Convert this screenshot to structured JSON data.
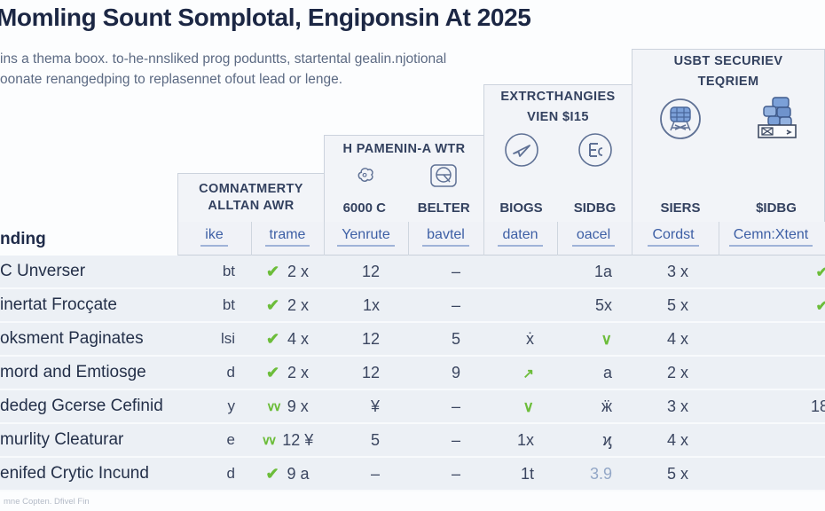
{
  "page": {
    "title": "Momling Sount Somplotal, Engiponsin At 2025",
    "subtitle1": "ins a thema boox. to-he-nnsliked prog poduntts, startental gealin.njotional",
    "subtitle2": "oonate renangedping to replasennet ofout lead or lenge.",
    "footer": "mne Copten. Dfivel Fin"
  },
  "colors": {
    "title_navy": "#1c2744",
    "link_blue": "#3d5fa5",
    "check_green": "#6cbd3a",
    "panel_bg": "#f2f4f8",
    "row_bg": "#ecf0f5"
  },
  "table": {
    "row_header": "nding",
    "groups": [
      {
        "title1": "COMNATMERTY",
        "title2": "ALLTAN AWR",
        "cols": [
          {
            "label": "ike"
          },
          {
            "label": "trame"
          }
        ]
      },
      {
        "title1": "H PAMENIN-A WTR",
        "title2": "",
        "cols": [
          {
            "name": "6000 C",
            "label": "Yenrute",
            "icon": "swirl-icon"
          },
          {
            "name": "BELTER",
            "label": "bavtel",
            "icon": "target-icon"
          }
        ]
      },
      {
        "title1": "EXTRCTHANGIES",
        "title2": "VIEN $I15",
        "cols": [
          {
            "name": "BIOGS",
            "label": "daten",
            "icon": "paper-plane-icon"
          },
          {
            "name": "SIDBG",
            "label": "oacel",
            "icon": "document-icon"
          }
        ]
      },
      {
        "title1": "USBT SECURIEV",
        "title2": "TEQRIEM",
        "cols": [
          {
            "name": "SIERS",
            "label": "Cordst",
            "icon": "tank-icon"
          },
          {
            "name": "$IDBG",
            "label": "Cemn:Xtent",
            "icon": "boxes-icon"
          }
        ]
      }
    ],
    "rows": [
      {
        "label": "C Unverser",
        "cells": [
          {
            "text": "bt"
          },
          {
            "icon": "mk-check",
            "text": "2 x"
          },
          {
            "text": "12"
          },
          {
            "text": "–"
          },
          {},
          {
            "text": "1a"
          },
          {
            "text": "3 x"
          },
          {
            "icon": "mk-checkcut"
          }
        ]
      },
      {
        "label": "inertat Frocçate",
        "cells": [
          {
            "text": "bt"
          },
          {
            "icon": "mk-check",
            "text": "2 x"
          },
          {
            "text": "1x"
          },
          {
            "text": "–"
          },
          {},
          {
            "text": "5x"
          },
          {
            "text": "5 x"
          },
          {
            "icon": "mk-checkcut"
          }
        ]
      },
      {
        "label": "oksment Paginates",
        "cells": [
          {
            "text": "lsi"
          },
          {
            "icon": "mk-check",
            "text": "4 x"
          },
          {
            "text": "12"
          },
          {
            "text": "5"
          },
          {
            "text": "ẋ"
          },
          {
            "icon": "mk-chev"
          },
          {
            "text": "4 x"
          },
          {}
        ]
      },
      {
        "label": "mord and Emtiosge",
        "cells": [
          {
            "text": "d"
          },
          {
            "icon": "mk-check",
            "text": "2 x"
          },
          {
            "text": "12"
          },
          {
            "text": "9"
          },
          {
            "icon": "mk-arrow"
          },
          {
            "text": "a"
          },
          {
            "text": "2 x"
          },
          {}
        ]
      },
      {
        "label": "dedeg Gcerse Cefinid",
        "cells": [
          {
            "text": "y"
          },
          {
            "icon": "mk-wavy",
            "text": "9 x"
          },
          {
            "text": "¥"
          },
          {
            "text": "–"
          },
          {
            "icon": "mk-chev"
          },
          {
            "text": "ӝ"
          },
          {
            "text": "3 x"
          },
          {
            "text": "18",
            "cut": true
          }
        ]
      },
      {
        "label": "murlity Cleaturar",
        "cells": [
          {
            "text": "e"
          },
          {
            "icon": "mk-wavy",
            "text": "12 ¥"
          },
          {
            "text": "5"
          },
          {
            "text": "–"
          },
          {
            "text": "1x"
          },
          {
            "text": "ϗ"
          },
          {
            "text": "4 x"
          },
          {}
        ]
      },
      {
        "label": "enifed Crytic Incund",
        "cells": [
          {
            "text": "d"
          },
          {
            "icon": "mk-check",
            "text": "9 a"
          },
          {
            "text": "–"
          },
          {
            "text": "–"
          },
          {
            "text": "1t"
          },
          {
            "text": "3.9",
            "muted": true
          },
          {
            "text": "5 x"
          },
          {}
        ]
      }
    ]
  }
}
